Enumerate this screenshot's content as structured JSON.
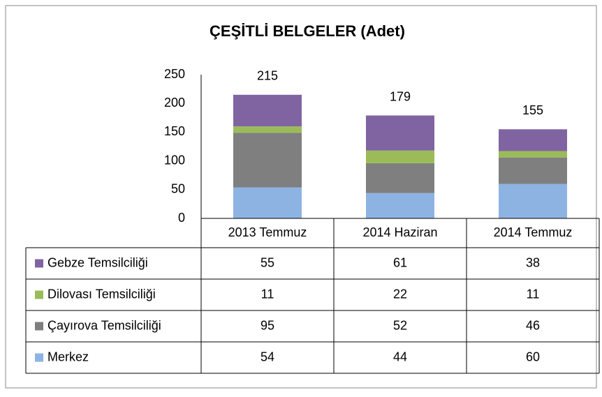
{
  "chart_data": {
    "type": "stacked_bar",
    "title": "ÇEŞİTLİ BELGELER (Adet)",
    "categories": [
      "2013 Temmuz",
      "2014 Haziran",
      "2014 Temmuz"
    ],
    "series": [
      {
        "name": "Merkez",
        "color": "#8db3e2",
        "values": [
          54,
          44,
          60
        ]
      },
      {
        "name": "Çayırova Temsilciliği",
        "color": "#7f7f7f",
        "values": [
          95,
          52,
          46
        ]
      },
      {
        "name": "Dilovası Temsilciliği",
        "color": "#9bbb59",
        "values": [
          11,
          22,
          11
        ]
      },
      {
        "name": "Gebze Temsilciliği",
        "color": "#8064a2",
        "values": [
          55,
          61,
          38
        ]
      }
    ],
    "totals": [
      215,
      179,
      155
    ],
    "ylim": [
      0,
      250
    ],
    "yticks": [
      0,
      50,
      100,
      150,
      200,
      250
    ],
    "grid": false,
    "legend": "table"
  }
}
